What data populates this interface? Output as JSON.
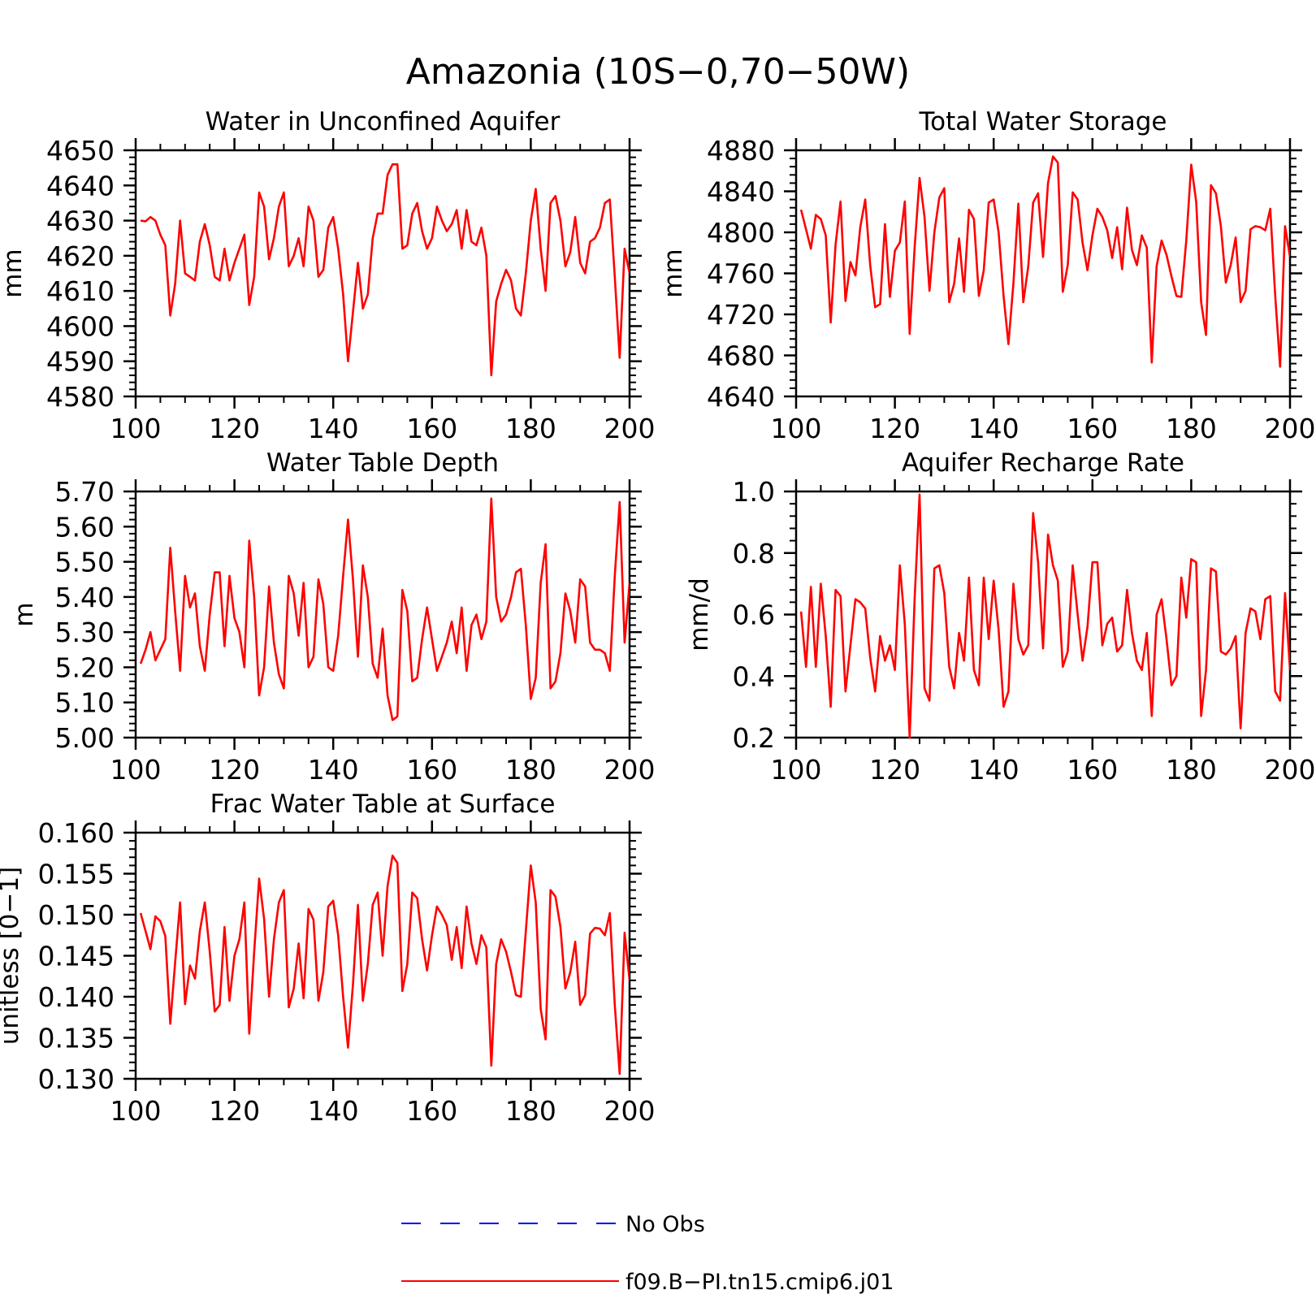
{
  "title": "Amazonia (10S−0,70−50W)",
  "colors": {
    "model": "#ff0000",
    "obs": "#0000ff",
    "axes": "#000000"
  },
  "legend": {
    "entries": [
      {
        "label": "No Obs",
        "style": "dashed",
        "color": "#0000ff"
      },
      {
        "label": "f09.B−PI.tn15.cmip6.j01",
        "style": "solid",
        "color": "#ff0000"
      }
    ]
  },
  "chart_data": [
    {
      "type": "line",
      "title": "Water in Unconfined Aquifer",
      "ylabel": "mm",
      "xlim": [
        100,
        200
      ],
      "ylim": [
        4580,
        4650
      ],
      "xticks": [
        "100",
        "120",
        "140",
        "160",
        "180",
        "200"
      ],
      "yticks": [
        "4580",
        "4590",
        "4600",
        "4610",
        "4620",
        "4630",
        "4640",
        "4650"
      ],
      "series": [
        {
          "name": "f09.B−PI.tn15.cmip6.j01",
          "x_start": 101,
          "x_step": 1,
          "values": [
            4630,
            4629.8,
            4631,
            4630,
            4626,
            4623,
            4603,
            4612,
            4630,
            4615,
            4614,
            4613,
            4624,
            4629,
            4623,
            4614,
            4613,
            4622,
            4613,
            4618,
            4622,
            4626,
            4606,
            4614,
            4638,
            4634,
            4619,
            4625,
            4634,
            4638,
            4617,
            4620,
            4625,
            4617,
            4634,
            4630,
            4614,
            4616,
            4628,
            4631,
            4622,
            4609,
            4590,
            4604,
            4618,
            4605,
            4609,
            4625,
            4632,
            4632,
            4643,
            4646,
            4646,
            4622,
            4623,
            4632,
            4635,
            4627,
            4622,
            4625,
            4634,
            4630,
            4627,
            4629,
            4633,
            4622,
            4633,
            4624,
            4623,
            4628,
            4620,
            4586,
            4607,
            4612,
            4616,
            4613,
            4605,
            4603,
            4615,
            4630,
            4639,
            4622,
            4610,
            4635,
            4637,
            4630,
            4617,
            4621,
            4631,
            4618,
            4615,
            4624,
            4625,
            4628,
            4635,
            4636,
            4614,
            4591,
            4622,
            4615
          ]
        }
      ]
    },
    {
      "type": "line",
      "title": "Total Water Storage",
      "ylabel": "mm",
      "xlim": [
        100,
        200
      ],
      "ylim": [
        4640,
        4880
      ],
      "xticks": [
        "100",
        "120",
        "140",
        "160",
        "180",
        "200"
      ],
      "yticks": [
        "4640",
        "4680",
        "4720",
        "4760",
        "4800",
        "4840",
        "4880"
      ],
      "series": [
        {
          "name": "f09.B−PI.tn15.cmip6.j01",
          "x_start": 101,
          "x_step": 1,
          "values": [
            4822,
            4803,
            4784,
            4817,
            4813,
            4797,
            4712,
            4788,
            4830,
            4733,
            4771,
            4758,
            4805,
            4832,
            4768,
            4727,
            4730,
            4808,
            4737,
            4782,
            4790,
            4830,
            4701,
            4785,
            4853,
            4815,
            4743,
            4800,
            4834,
            4843,
            4732,
            4750,
            4794,
            4742,
            4822,
            4813,
            4738,
            4763,
            4829,
            4832,
            4800,
            4738,
            4691,
            4750,
            4828,
            4732,
            4767,
            4829,
            4838,
            4776,
            4848,
            4874,
            4868,
            4742,
            4768,
            4839,
            4832,
            4790,
            4763,
            4797,
            4823,
            4815,
            4802,
            4775,
            4805,
            4764,
            4824,
            4783,
            4768,
            4797,
            4785,
            4673,
            4767,
            4792,
            4778,
            4757,
            4738,
            4737,
            4792,
            4866,
            4830,
            4732,
            4700,
            4846,
            4838,
            4806,
            4751,
            4768,
            4795,
            4732,
            4743,
            4803,
            4806,
            4805,
            4802,
            4823,
            4738,
            4669,
            4806,
            4776
          ]
        }
      ]
    },
    {
      "type": "line",
      "title": "Water Table Depth",
      "ylabel": "m",
      "xlim": [
        100,
        200
      ],
      "ylim": [
        5.0,
        5.7
      ],
      "xticks": [
        "100",
        "120",
        "140",
        "160",
        "180",
        "200"
      ],
      "yticks": [
        "5.00",
        "5.10",
        "5.20",
        "5.30",
        "5.40",
        "5.50",
        "5.60",
        "5.70"
      ],
      "series": [
        {
          "name": "f09.B−PI.tn15.cmip6.j01",
          "x_start": 101,
          "x_step": 1,
          "values": [
            5.21,
            5.25,
            5.3,
            5.22,
            5.25,
            5.28,
            5.54,
            5.36,
            5.19,
            5.46,
            5.37,
            5.41,
            5.26,
            5.19,
            5.35,
            5.47,
            5.47,
            5.26,
            5.46,
            5.34,
            5.3,
            5.2,
            5.56,
            5.4,
            5.12,
            5.2,
            5.43,
            5.27,
            5.18,
            5.14,
            5.46,
            5.41,
            5.29,
            5.44,
            5.2,
            5.23,
            5.45,
            5.38,
            5.2,
            5.19,
            5.29,
            5.46,
            5.62,
            5.45,
            5.23,
            5.49,
            5.4,
            5.21,
            5.17,
            5.31,
            5.12,
            5.05,
            5.06,
            5.42,
            5.36,
            5.16,
            5.17,
            5.28,
            5.37,
            5.28,
            5.19,
            5.23,
            5.27,
            5.33,
            5.24,
            5.37,
            5.19,
            5.32,
            5.35,
            5.28,
            5.33,
            5.68,
            5.4,
            5.33,
            5.35,
            5.4,
            5.47,
            5.48,
            5.32,
            5.11,
            5.17,
            5.44,
            5.55,
            5.14,
            5.16,
            5.24,
            5.41,
            5.36,
            5.27,
            5.45,
            5.43,
            5.27,
            5.25,
            5.25,
            5.24,
            5.19,
            5.46,
            5.67,
            5.27,
            5.44
          ]
        }
      ]
    },
    {
      "type": "line",
      "title": "Aquifer Recharge Rate",
      "ylabel": "mm/d",
      "xlim": [
        100,
        200
      ],
      "ylim": [
        0.2,
        1.0
      ],
      "xticks": [
        "100",
        "120",
        "140",
        "160",
        "180",
        "200"
      ],
      "yticks": [
        "0.2",
        "0.4",
        "0.6",
        "0.8",
        "1.0"
      ],
      "series": [
        {
          "name": "f09.B−PI.tn15.cmip6.j01",
          "x_start": 101,
          "x_step": 1,
          "values": [
            0.61,
            0.43,
            0.69,
            0.43,
            0.7,
            0.53,
            0.3,
            0.68,
            0.66,
            0.35,
            0.5,
            0.65,
            0.64,
            0.62,
            0.46,
            0.35,
            0.53,
            0.45,
            0.5,
            0.42,
            0.76,
            0.57,
            0.2,
            0.65,
            0.99,
            0.36,
            0.32,
            0.75,
            0.76,
            0.67,
            0.43,
            0.36,
            0.54,
            0.45,
            0.72,
            0.42,
            0.37,
            0.72,
            0.52,
            0.71,
            0.55,
            0.3,
            0.35,
            0.7,
            0.52,
            0.47,
            0.5,
            0.93,
            0.77,
            0.49,
            0.86,
            0.76,
            0.71,
            0.43,
            0.48,
            0.76,
            0.6,
            0.45,
            0.56,
            0.77,
            0.77,
            0.5,
            0.57,
            0.59,
            0.48,
            0.5,
            0.68,
            0.54,
            0.45,
            0.42,
            0.54,
            0.27,
            0.6,
            0.65,
            0.52,
            0.37,
            0.4,
            0.72,
            0.59,
            0.78,
            0.77,
            0.27,
            0.42,
            0.75,
            0.74,
            0.48,
            0.47,
            0.49,
            0.53,
            0.23,
            0.54,
            0.62,
            0.61,
            0.52,
            0.65,
            0.66,
            0.35,
            0.32,
            0.67,
            0.42
          ]
        }
      ]
    },
    {
      "type": "line",
      "title": "Frac Water Table at Surface",
      "ylabel": "unitless [0−1]",
      "xlim": [
        100,
        200
      ],
      "ylim": [
        0.13,
        0.16
      ],
      "xticks": [
        "100",
        "120",
        "140",
        "160",
        "180",
        "200"
      ],
      "yticks": [
        "0.130",
        "0.135",
        "0.140",
        "0.145",
        "0.150",
        "0.155",
        "0.160"
      ],
      "series": [
        {
          "name": "f09.B−PI.tn15.cmip6.j01",
          "x_start": 101,
          "x_step": 1,
          "values": [
            0.1502,
            0.148,
            0.1458,
            0.1498,
            0.1492,
            0.1474,
            0.1367,
            0.1442,
            0.1515,
            0.1391,
            0.1438,
            0.1422,
            0.148,
            0.1515,
            0.1455,
            0.1382,
            0.139,
            0.1485,
            0.1395,
            0.145,
            0.147,
            0.1515,
            0.1355,
            0.1455,
            0.1544,
            0.1495,
            0.14,
            0.147,
            0.1515,
            0.153,
            0.1387,
            0.141,
            0.1465,
            0.1398,
            0.1507,
            0.1494,
            0.1395,
            0.143,
            0.151,
            0.1517,
            0.1475,
            0.14,
            0.1338,
            0.1415,
            0.1512,
            0.1395,
            0.144,
            0.1512,
            0.1527,
            0.145,
            0.1535,
            0.1572,
            0.1563,
            0.1407,
            0.144,
            0.1527,
            0.152,
            0.147,
            0.1432,
            0.1475,
            0.151,
            0.15,
            0.1487,
            0.1445,
            0.1485,
            0.1435,
            0.151,
            0.1465,
            0.144,
            0.1475,
            0.146,
            0.1316,
            0.144,
            0.147,
            0.1455,
            0.143,
            0.1402,
            0.14,
            0.148,
            0.156,
            0.1515,
            0.1385,
            0.1348,
            0.153,
            0.1522,
            0.1485,
            0.141,
            0.143,
            0.1467,
            0.139,
            0.1402,
            0.1477,
            0.1484,
            0.1483,
            0.1475,
            0.1502,
            0.139,
            0.1306,
            0.1478,
            0.142
          ]
        }
      ]
    }
  ]
}
